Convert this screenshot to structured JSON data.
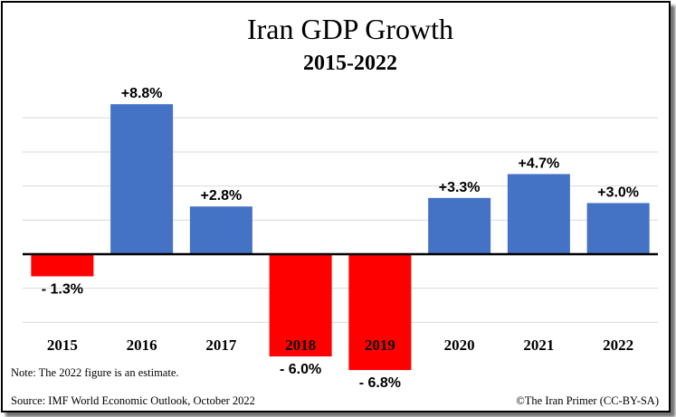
{
  "chart_data": {
    "type": "bar",
    "title": "Iran GDP Growth",
    "subtitle": "2015-2022",
    "categories": [
      "2015",
      "2016",
      "2017",
      "2018",
      "2019",
      "2020",
      "2021",
      "2022"
    ],
    "values": [
      -1.3,
      8.8,
      2.8,
      -6.0,
      -6.8,
      3.3,
      4.7,
      3.0
    ],
    "data_labels": [
      "- 1.3%",
      "+8.8%",
      "+2.8%",
      "- 6.0%",
      "- 6.8%",
      "+3.3%",
      "+4.7%",
      "+3.0%"
    ],
    "xlabel": "",
    "ylabel": "",
    "ylim": [
      -9,
      11
    ],
    "grid": true,
    "colors": {
      "positive": "#4472c4",
      "negative": "#ff0000",
      "gridline": "#d9d9d9",
      "axis": "#000000"
    }
  },
  "notes": {
    "note": "Note: The 2022 figure is an estimate.",
    "source": "Source: IMF World Economic Outlook, October 2022",
    "credit": "©The Iran Primer (CC-BY-SA)"
  }
}
